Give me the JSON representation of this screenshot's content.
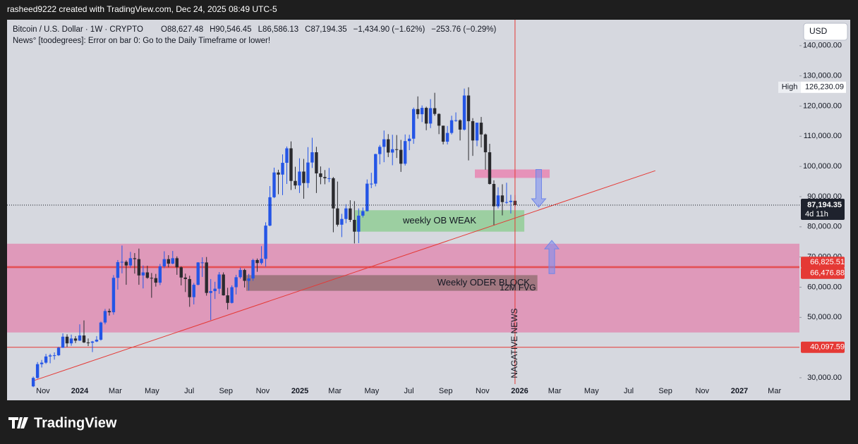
{
  "header": {
    "credit": "rasheed9222 created with TradingView.com, Dec 24, 2025 08:49 UTC-5",
    "logo": "TradingView"
  },
  "chart_data": {
    "type": "candlestick",
    "title": "Bitcoin / U.S. Dollar · 1W · CRYPTO",
    "legend": [
      "O88,627.48",
      "H90,546.45",
      "L86,586.13",
      "C87,194.35",
      "−1,434.90 (−1.62%)",
      "−253.76 (−0.29%)"
    ],
    "indicator": "News° [toodegrees]: Error on bar 0: Go to the Daily Timeframe or lower!",
    "currency": "USD",
    "open": [
      27150,
      29950,
      34500,
      35000,
      37050,
      37400,
      37450,
      39950,
      43600,
      41400,
      43000,
      42300,
      44000,
      41700,
      41600,
      42000,
      42600,
      48300,
      52100,
      51700,
      63100,
      68300,
      68400,
      67200,
      69600,
      69300,
      63900,
      64900,
      63100,
      63000,
      61500,
      66900,
      69300,
      67800,
      69600,
      66600,
      63200,
      62700,
      56700,
      60800,
      68200,
      68200,
      58100,
      58700,
      59500,
      64200,
      57300,
      54800,
      60000,
      63300,
      65700,
      62100,
      62900,
      69000,
      68000,
      69400,
      80400,
      89800,
      98000,
      97300,
      101200,
      106000,
      95200,
      93700,
      98300,
      94500,
      101300,
      104700,
      97700,
      96500,
      96100,
      96100,
      86100,
      80700,
      82600,
      86100,
      82300,
      78400,
      83700,
      85200,
      94300,
      94300,
      104100,
      106500,
      109000,
      104600,
      105700,
      105500,
      100900,
      108400,
      109200,
      119000,
      117300,
      119400,
      114200,
      119300,
      117400,
      113500,
      108200,
      111100,
      115300,
      115300,
      112200,
      123500,
      115000,
      108600,
      114500,
      110600,
      104700,
      94200,
      86800,
      90400,
      88200,
      88200,
      88627.48
    ],
    "high": [
      30400,
      35200,
      35900,
      37900,
      37950,
      38400,
      40250,
      44700,
      44400,
      44300,
      43800,
      47700,
      49000,
      43000,
      42200,
      43800,
      48600,
      52800,
      52900,
      64000,
      69000,
      73800,
      68900,
      71700,
      71300,
      72800,
      67200,
      67100,
      64700,
      64400,
      67700,
      71900,
      70600,
      72000,
      70200,
      66900,
      64500,
      63800,
      61400,
      68300,
      69900,
      70000,
      62700,
      61800,
      65000,
      64900,
      59800,
      60600,
      64100,
      66500,
      66100,
      64400,
      69400,
      69500,
      73600,
      81500,
      93500,
      99600,
      98900,
      104000,
      106600,
      108300,
      99900,
      102700,
      102500,
      106400,
      109500,
      106500,
      100000,
      98800,
      99500,
      96500,
      95000,
      84300,
      87500,
      88800,
      88500,
      86100,
      86400,
      95700,
      97900,
      104200,
      107100,
      111900,
      110700,
      110500,
      110400,
      108800,
      110600,
      110500,
      119500,
      123200,
      120200,
      119800,
      122300,
      124400,
      117600,
      113500,
      113400,
      116800,
      117900,
      115600,
      125800,
      126230.09,
      116000,
      114000,
      116400,
      110900,
      107500,
      95400,
      93100,
      94100,
      94600,
      90600,
      90546.45
    ],
    "low": [
      26900,
      29700,
      33400,
      34600,
      34800,
      36000,
      37200,
      39900,
      40200,
      40600,
      41500,
      42200,
      41500,
      40500,
      38500,
      41800,
      42300,
      47700,
      50600,
      50900,
      59200,
      64600,
      60800,
      66400,
      64500,
      60800,
      59600,
      62800,
      56500,
      60200,
      60700,
      66300,
      66600,
      67600,
      64100,
      60600,
      58400,
      53500,
      54300,
      60600,
      63400,
      57200,
      49100,
      56100,
      57800,
      57200,
      52600,
      54600,
      57600,
      62800,
      59900,
      58900,
      62100,
      65100,
      67500,
      66800,
      80200,
      89500,
      90800,
      90500,
      94200,
      92200,
      92500,
      91200,
      89300,
      92900,
      99500,
      91200,
      94100,
      94100,
      94800,
      78200,
      80100,
      76600,
      81200,
      81600,
      74500,
      74600,
      83100,
      85100,
      92800,
      93400,
      100700,
      101400,
      103100,
      100400,
      102800,
      98200,
      100300,
      105400,
      107500,
      115800,
      114700,
      112000,
      112700,
      116800,
      110700,
      107300,
      107300,
      110600,
      114800,
      108600,
      111900,
      102000,
      103500,
      106700,
      106300,
      98900,
      94000,
      80600,
      86100,
      83800,
      87600,
      84400,
      86586.13
    ],
    "close": [
      29950,
      34500,
      35000,
      37050,
      37400,
      37450,
      39950,
      43600,
      41400,
      43000,
      42300,
      44000,
      41700,
      41600,
      42000,
      42600,
      48300,
      52100,
      51700,
      63100,
      68300,
      68400,
      67200,
      69600,
      69300,
      63900,
      64900,
      63100,
      63000,
      61500,
      66900,
      69300,
      67800,
      69600,
      66600,
      63200,
      62700,
      56700,
      60800,
      68200,
      68200,
      58100,
      58700,
      59500,
      64200,
      57300,
      54800,
      60000,
      63300,
      65700,
      62100,
      62900,
      69000,
      68000,
      69400,
      80400,
      89800,
      98000,
      97300,
      101200,
      106000,
      95200,
      93700,
      98300,
      94500,
      101300,
      104700,
      97700,
      96500,
      96100,
      96100,
      86100,
      80700,
      82600,
      86100,
      82300,
      78400,
      83700,
      85200,
      94300,
      94300,
      104100,
      106500,
      109000,
      104600,
      105700,
      105500,
      100900,
      108400,
      109200,
      119000,
      117300,
      119400,
      114200,
      119300,
      117400,
      113500,
      108200,
      111100,
      115300,
      115300,
      112200,
      123500,
      115000,
      108600,
      114500,
      110600,
      104700,
      94200,
      86800,
      90400,
      88200,
      88200,
      88627.48,
      87194.35
    ],
    "up_color": "#2455e6",
    "down_color": "#2a2a2e",
    "xlim": [
      -6.2,
      181.3
    ],
    "xticks": [
      {
        "value": 2.3,
        "label": "Nov"
      },
      {
        "value": 11,
        "label": "2024"
      },
      {
        "value": 19.4,
        "label": "Mar"
      },
      {
        "value": 28.1,
        "label": "May"
      },
      {
        "value": 36.9,
        "label": "Jul"
      },
      {
        "value": 45.6,
        "label": "Sep"
      },
      {
        "value": 54.3,
        "label": "Nov"
      },
      {
        "value": 63.1,
        "label": "2025"
      },
      {
        "value": 71.4,
        "label": "Mar"
      },
      {
        "value": 80.1,
        "label": "May"
      },
      {
        "value": 88.9,
        "label": "Jul"
      },
      {
        "value": 97.6,
        "label": "Sep"
      },
      {
        "value": 106.3,
        "label": "Nov"
      },
      {
        "value": 115.1,
        "label": "2026"
      },
      {
        "value": 123.4,
        "label": "Mar"
      },
      {
        "value": 132.1,
        "label": "May"
      },
      {
        "value": 140.9,
        "label": "Jul"
      },
      {
        "value": 149.6,
        "label": "Sep"
      },
      {
        "value": 158.3,
        "label": "Nov"
      },
      {
        "value": 167.1,
        "label": "2027"
      },
      {
        "value": 175.4,
        "label": "Mar"
      }
    ],
    "ylim": [
      27900,
      148600
    ],
    "yticks": [
      {
        "value": 30000,
        "label": "30,000.00"
      },
      {
        "value": 50000,
        "label": "50,000.00"
      },
      {
        "value": 60000,
        "label": "60,000.00"
      },
      {
        "value": 70000,
        "label": "70,000.00"
      },
      {
        "value": 80000,
        "label": "80,000.00"
      },
      {
        "value": 90000,
        "label": "90,000.00"
      },
      {
        "value": 100000,
        "label": "100,000.00"
      },
      {
        "value": 110000,
        "label": "110,000.00"
      },
      {
        "value": 120000,
        "label": "120,000.00"
      },
      {
        "value": 130000,
        "label": "130,000.00"
      },
      {
        "value": 140000,
        "label": "140,000.00"
      }
    ],
    "last_price": {
      "label": "87,194.35",
      "countdown": "4d 11h"
    },
    "high_marker": {
      "name": "High",
      "value": 126230.09,
      "label": "126,230.09"
    },
    "levels": [
      {
        "value": 66825.51,
        "label": "66,825.51"
      },
      {
        "value": 66476.88,
        "label": "66,476.88"
      },
      {
        "value": 40097.59,
        "label": "40,097.59"
      }
    ],
    "zones": [
      {
        "y0": 45000,
        "y1": 74400,
        "color": "rgba(232,90,150,0.5)"
      },
      {
        "x0": 76.1,
        "x1": 116.2,
        "y0": 78400,
        "y1": 85500,
        "color": "rgba(110,200,110,0.55)",
        "label": "weekly OB WEAK"
      },
      {
        "x0": 50.4,
        "x1": 119.3,
        "y0": 58800,
        "y1": 64000,
        "color": "rgba(100,85,70,0.5)",
        "label": "Weekly ODER BLOCK"
      },
      {
        "x0": 104.5,
        "x1": 122.2,
        "y0": 96200,
        "y1": 99000,
        "color": "rgba(240,100,160,0.6)"
      }
    ],
    "trendline": {
      "x": [
        0,
        147.2
      ],
      "y": [
        29000,
        98600
      ]
    },
    "now_line": {
      "x": 114,
      "label": "NAGATIVE NEWS"
    },
    "note": "12M FVG",
    "arrows": [
      {
        "x": 119.6,
        "from": 99000,
        "to": 86500
      },
      {
        "x": 122.7,
        "from": 64500,
        "to": 75500
      }
    ]
  }
}
